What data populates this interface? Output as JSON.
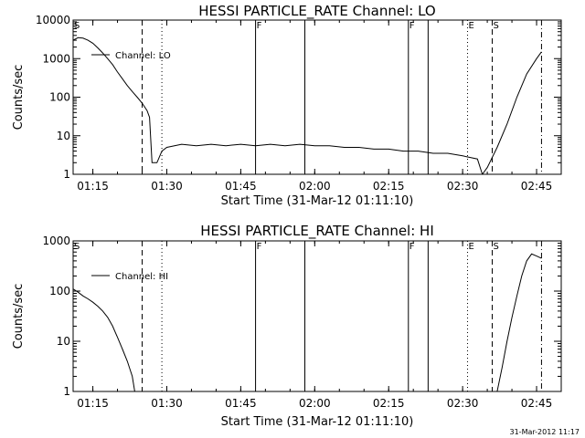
{
  "footer": {
    "timestamp": "31-Mar-2012 11:17"
  },
  "colors": {
    "foreground": "#000000",
    "background": "#ffffff"
  },
  "chart_data": [
    {
      "type": "line",
      "title": "HESSI PARTICLE_RATE Channel: LO",
      "xlabel": "Start Time (31-Mar-12 01:11:10)",
      "ylabel": "Counts/sec",
      "yscale": "log",
      "xlim": [
        "01:11",
        "02:50"
      ],
      "ylim": [
        1,
        10000
      ],
      "xtick_labels": [
        "01:15",
        "01:30",
        "01:45",
        "02:00",
        "02:15",
        "02:30",
        "02:45"
      ],
      "ytick_labels": [
        "1",
        "10",
        "100",
        "1000",
        "10000"
      ],
      "series": [
        {
          "name": "Channel: LO",
          "points": [
            [
              "01:11",
              3000
            ],
            [
              "01:12",
              3500
            ],
            [
              "01:13",
              3400
            ],
            [
              "01:14",
              3000
            ],
            [
              "01:15",
              2500
            ],
            [
              "01:16",
              1900
            ],
            [
              "01:17",
              1400
            ],
            [
              "01:18",
              1000
            ],
            [
              "01:19",
              700
            ],
            [
              "01:20",
              450
            ],
            [
              "01:21",
              300
            ],
            [
              "01:22",
              200
            ],
            [
              "01:23",
              140
            ],
            [
              "01:24",
              100
            ],
            [
              "01:25",
              70
            ],
            [
              "01:26",
              45
            ],
            [
              "01:26:30",
              30
            ],
            [
              "01:27",
              2
            ],
            [
              "01:28",
              2
            ],
            [
              "01:29",
              4
            ],
            [
              "01:30",
              5
            ],
            [
              "01:33",
              6
            ],
            [
              "01:36",
              5.5
            ],
            [
              "01:39",
              6
            ],
            [
              "01:42",
              5.5
            ],
            [
              "01:45",
              6
            ],
            [
              "01:48",
              5.5
            ],
            [
              "01:51",
              6
            ],
            [
              "01:54",
              5.5
            ],
            [
              "01:57",
              6
            ],
            [
              "02:00",
              5.5
            ],
            [
              "02:03",
              5.5
            ],
            [
              "02:06",
              5
            ],
            [
              "02:09",
              5
            ],
            [
              "02:12",
              4.5
            ],
            [
              "02:15",
              4.5
            ],
            [
              "02:18",
              4
            ],
            [
              "02:21",
              4
            ],
            [
              "02:24",
              3.5
            ],
            [
              "02:27",
              3.5
            ],
            [
              "02:30",
              3
            ],
            [
              "02:33",
              2.5
            ],
            [
              "02:34",
              1
            ],
            [
              "02:35",
              1.5
            ],
            [
              "02:37",
              5
            ],
            [
              "02:39",
              20
            ],
            [
              "02:41",
              100
            ],
            [
              "02:43",
              400
            ],
            [
              "02:45",
              1000
            ],
            [
              "02:46",
              1500
            ]
          ]
        }
      ],
      "markers": {
        "solid": [
          "01:48",
          "01:58",
          "02:19",
          "02:23"
        ],
        "dashed": [
          "01:25",
          "02:36"
        ],
        "dotted": [
          "01:29",
          "02:31"
        ],
        "dashdot": [
          "02:46"
        ],
        "labels": [
          {
            "time": "01:11",
            "text": "S"
          },
          {
            "time": "01:48",
            "text": "F"
          },
          {
            "time": "02:19",
            "text": "F"
          },
          {
            "time": "02:31",
            "text": "E"
          },
          {
            "time": "02:36",
            "text": "S"
          }
        ]
      }
    },
    {
      "type": "line",
      "title": "HESSI PARTICLE_RATE Channel: HI",
      "xlabel": "Start Time (31-Mar-12 01:11:10)",
      "ylabel": "Counts/sec",
      "yscale": "log",
      "xlim": [
        "01:11",
        "02:50"
      ],
      "ylim": [
        1,
        1000
      ],
      "xtick_labels": [
        "01:15",
        "01:30",
        "01:45",
        "02:00",
        "02:15",
        "02:30",
        "02:45"
      ],
      "ytick_labels": [
        "1",
        "10",
        "100",
        "1000"
      ],
      "series": [
        {
          "name": "Channel: HI",
          "points": [
            [
              "01:11",
              110
            ],
            [
              "01:12",
              95
            ],
            [
              "01:13",
              80
            ],
            [
              "01:14",
              70
            ],
            [
              "01:15",
              60
            ],
            [
              "01:16",
              50
            ],
            [
              "01:17",
              40
            ],
            [
              "01:18",
              30
            ],
            [
              "01:19",
              20
            ],
            [
              "01:20",
              12
            ],
            [
              "01:21",
              7
            ],
            [
              "01:22",
              4
            ],
            [
              "01:23",
              2
            ],
            [
              "01:23:30",
              1
            ],
            [
              null,
              null
            ],
            [
              "02:37",
              1
            ],
            [
              "02:38",
              3
            ],
            [
              "02:39",
              10
            ],
            [
              "02:40",
              30
            ],
            [
              "02:41",
              80
            ],
            [
              "02:42",
              200
            ],
            [
              "02:43",
              400
            ],
            [
              "02:44",
              550
            ],
            [
              "02:45",
              500
            ],
            [
              "02:46",
              450
            ]
          ]
        }
      ],
      "markers": {
        "solid": [
          "01:48",
          "01:58",
          "02:19",
          "02:23"
        ],
        "dashed": [
          "01:25",
          "02:36"
        ],
        "dotted": [
          "01:29",
          "02:31"
        ],
        "dashdot": [
          "02:46"
        ],
        "labels": [
          {
            "time": "01:11",
            "text": "S"
          },
          {
            "time": "01:48",
            "text": "F"
          },
          {
            "time": "02:19",
            "text": "F"
          },
          {
            "time": "02:31",
            "text": "E"
          },
          {
            "time": "02:36",
            "text": "S"
          }
        ]
      }
    }
  ]
}
